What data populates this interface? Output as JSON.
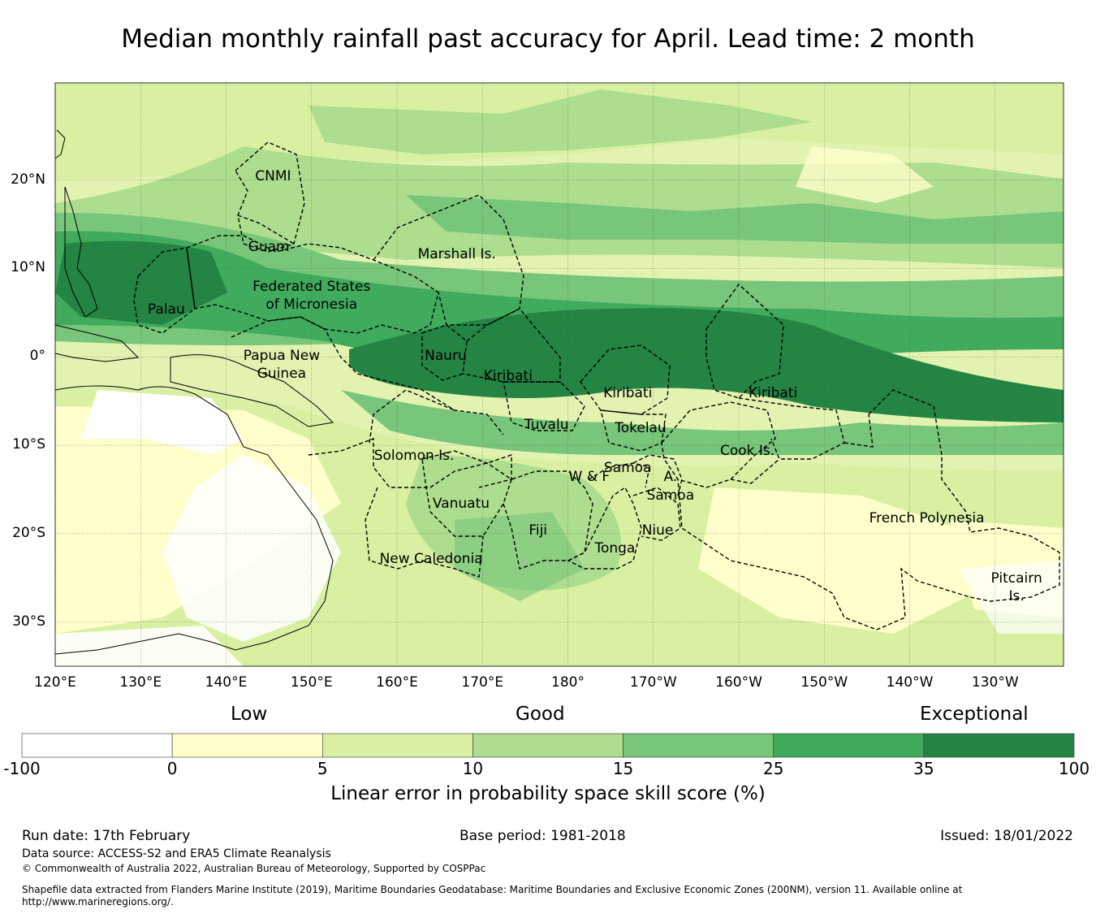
{
  "title": "Median monthly rainfall past accuracy for April. Lead time: 2 month",
  "map": {
    "lon_labels": [
      "120°E",
      "130°E",
      "140°E",
      "150°E",
      "160°E",
      "170°E",
      "180°",
      "170°W",
      "160°W",
      "150°W",
      "140°W",
      "130°W"
    ],
    "lon_values": [
      120,
      130,
      140,
      150,
      160,
      170,
      180,
      190,
      200,
      210,
      220,
      230
    ],
    "lat_labels": [
      "20°N",
      "10°N",
      "0°",
      "10°S",
      "20°S",
      "30°S"
    ],
    "lat_values": [
      20,
      10,
      0,
      -10,
      -20,
      -30
    ],
    "extent": {
      "lon_min": 120,
      "lon_max": 238,
      "lat_min": -35,
      "lat_max": 31
    },
    "regions": [
      {
        "name": "CNMI",
        "lon": 145.5,
        "lat": 20.3
      },
      {
        "name": "Guam",
        "lon": 145.0,
        "lat": 12.3
      },
      {
        "name": "Marshall Is.",
        "lon": 167.0,
        "lat": 11.5
      },
      {
        "name": "Federated States",
        "lon": 150.0,
        "lat": 7.8
      },
      {
        "name": "of Micronesia",
        "lon": 150.0,
        "lat": 5.8
      },
      {
        "name": "Palau",
        "lon": 133.0,
        "lat": 5.3
      },
      {
        "name": "Papua New",
        "lon": 146.5,
        "lat": 0.0
      },
      {
        "name": "Guinea",
        "lon": 146.5,
        "lat": -2.0
      },
      {
        "name": "Nauru",
        "lon": 165.7,
        "lat": 0.0
      },
      {
        "name": "Kiribati",
        "lon": 173.0,
        "lat": -2.3
      },
      {
        "name": "Kiribati",
        "lon": 187.0,
        "lat": -4.2
      },
      {
        "name": "Kiribati",
        "lon": 204.0,
        "lat": -4.2
      },
      {
        "name": "Tuvalu",
        "lon": 177.5,
        "lat": -7.8
      },
      {
        "name": "Tokelau",
        "lon": 188.5,
        "lat": -8.2
      },
      {
        "name": "Cook Is.",
        "lon": 201.0,
        "lat": -10.7
      },
      {
        "name": "Solomon Is.",
        "lon": 162.0,
        "lat": -11.3
      },
      {
        "name": "Samoa",
        "lon": 187.0,
        "lat": -12.7
      },
      {
        "name": "W & F",
        "lon": 182.5,
        "lat": -13.7
      },
      {
        "name": "A.",
        "lon": 192.0,
        "lat": -13.7
      },
      {
        "name": "Samoa",
        "lon": 192.0,
        "lat": -15.8
      },
      {
        "name": "Vanuatu",
        "lon": 167.5,
        "lat": -16.7
      },
      {
        "name": "French Polynesia",
        "lon": 222.0,
        "lat": -18.4
      },
      {
        "name": "Fiji",
        "lon": 176.5,
        "lat": -19.7
      },
      {
        "name": "Niue",
        "lon": 190.5,
        "lat": -19.7
      },
      {
        "name": "Tonga",
        "lon": 185.5,
        "lat": -21.8
      },
      {
        "name": "New Caledonia",
        "lon": 164.0,
        "lat": -23.0
      },
      {
        "name": "Pitcairn",
        "lon": 232.5,
        "lat": -25.2
      },
      {
        "name": "Is.",
        "lon": 232.5,
        "lat": -27.2
      }
    ]
  },
  "legend": {
    "low": "Low",
    "good": "Good",
    "exceptional": "Exceptional",
    "ticks": [
      "-100",
      "0",
      "5",
      "10",
      "15",
      "25",
      "35",
      "100"
    ],
    "colors": [
      "#ffffff",
      "#ffffcc",
      "#d9f0a3",
      "#addd8e",
      "#78c679",
      "#41ab5d",
      "#238443"
    ],
    "title": "Linear error in probability space skill score (%)"
  },
  "footer": {
    "run_date": "Run date: 17th February",
    "base_period": "Base period: 1981-2018",
    "issued": "Issued: 18/01/2022",
    "data_source": "Data source: ACCESS-S2 and ERA5 Climate Reanalysis",
    "copyright": "© Commonwealth of Australia 2022, Australian Bureau of Meteorology, Supported by COSPPac",
    "shapefile_line1": "Shapefile data extracted from Flanders Marine Institute (2019), Maritime Boundaries Geodatabase: Maritime Boundaries and Exclusive Economic Zones (200NM), version 11. Available online at",
    "shapefile_line2": "http://www.marineregions.org/."
  }
}
